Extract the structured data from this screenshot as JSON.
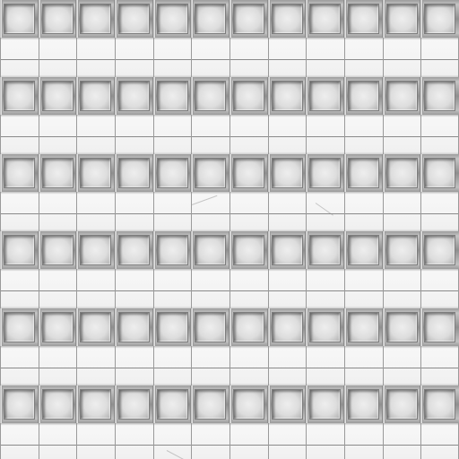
{
  "texture": {
    "bands": 6,
    "columns": 12,
    "colors": {
      "frame": "#9d9d9d",
      "glass": "#dddddd",
      "panel": "#f4f4f4",
      "seam": "#8a8a8a"
    }
  }
}
